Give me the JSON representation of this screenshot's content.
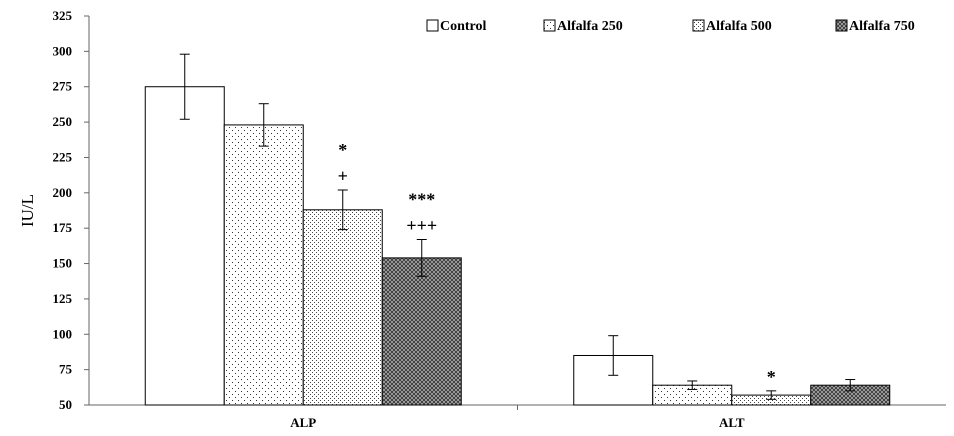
{
  "chart_data": {
    "type": "bar",
    "title": "",
    "xlabel": "",
    "ylabel": "IU/L",
    "ylim": [
      50,
      325
    ],
    "ytick_step": 25,
    "grid": false,
    "legend_position": "top-right",
    "categories": [
      "ALP",
      "ALT"
    ],
    "series": [
      {
        "name": "Control",
        "pattern": "none",
        "values": [
          275,
          85
        ],
        "errors": [
          23,
          14
        ],
        "annotations": [
          "",
          ""
        ]
      },
      {
        "name": "Alfalfa 250",
        "pattern": "sparse-dots",
        "values": [
          248,
          64
        ],
        "errors": [
          15,
          3
        ],
        "annotations": [
          "",
          ""
        ]
      },
      {
        "name": "Alfalfa 500",
        "pattern": "dense-dots",
        "values": [
          188,
          57
        ],
        "errors": [
          14,
          3
        ],
        "annotations": [
          "*\n+",
          "*"
        ]
      },
      {
        "name": "Alfalfa 750",
        "pattern": "crosshatch",
        "values": [
          154,
          64
        ],
        "errors": [
          13,
          4
        ],
        "annotations": [
          "***\n+++",
          ""
        ]
      }
    ]
  }
}
